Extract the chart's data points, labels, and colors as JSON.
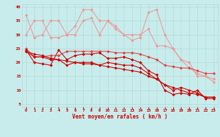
{
  "xlabel": "Vent moyen/en rafales ( km/h )",
  "bg_color": "#c8ecec",
  "grid_color": "#b0d8d8",
  "line_color_dark": "#cc0000",
  "line_color_mid": "#dd4444",
  "line_color_light": "#ee9999",
  "x_max": 24,
  "ylim": [
    4,
    41
  ],
  "yticks": [
    5,
    10,
    15,
    20,
    25,
    30,
    35,
    40
  ],
  "lines_dark": [
    [
      24.5,
      20,
      19.5,
      19,
      24.5,
      21,
      22.5,
      23,
      23,
      23.5,
      21.5,
      21.5,
      22,
      21,
      20,
      17,
      15.5,
      10,
      8.5,
      9,
      8.5,
      10,
      7,
      7
    ],
    [
      24,
      22,
      22,
      21,
      21,
      19,
      20,
      20,
      20,
      19,
      20,
      19.5,
      19,
      19,
      18,
      16,
      14,
      12,
      10,
      11,
      10,
      9,
      7.5,
      7.5
    ],
    [
      24,
      23,
      22.5,
      21.5,
      21,
      20.5,
      20,
      19.5,
      19.5,
      19,
      18.5,
      18,
      17.5,
      17,
      16.5,
      15,
      14,
      12,
      11,
      10,
      9,
      8.5,
      7.5,
      7.5
    ]
  ],
  "lines_mid": [
    [
      25,
      22,
      22,
      22.5,
      22.5,
      24,
      24,
      24,
      24,
      24,
      24,
      23.5,
      23.5,
      23.5,
      23,
      22,
      21,
      19,
      18.5,
      18,
      18,
      17,
      16,
      16
    ]
  ],
  "lines_light": [
    [
      37,
      29,
      30,
      35,
      35,
      30,
      30,
      35,
      36,
      30,
      35,
      32,
      30,
      30,
      30,
      32,
      26,
      26,
      25,
      21,
      20,
      15,
      15,
      13
    ],
    [
      30,
      35,
      35,
      29,
      29,
      30,
      33,
      39,
      39,
      35,
      35,
      33,
      30,
      28,
      29,
      38,
      39,
      30,
      25,
      21,
      18,
      16,
      15,
      14
    ]
  ]
}
